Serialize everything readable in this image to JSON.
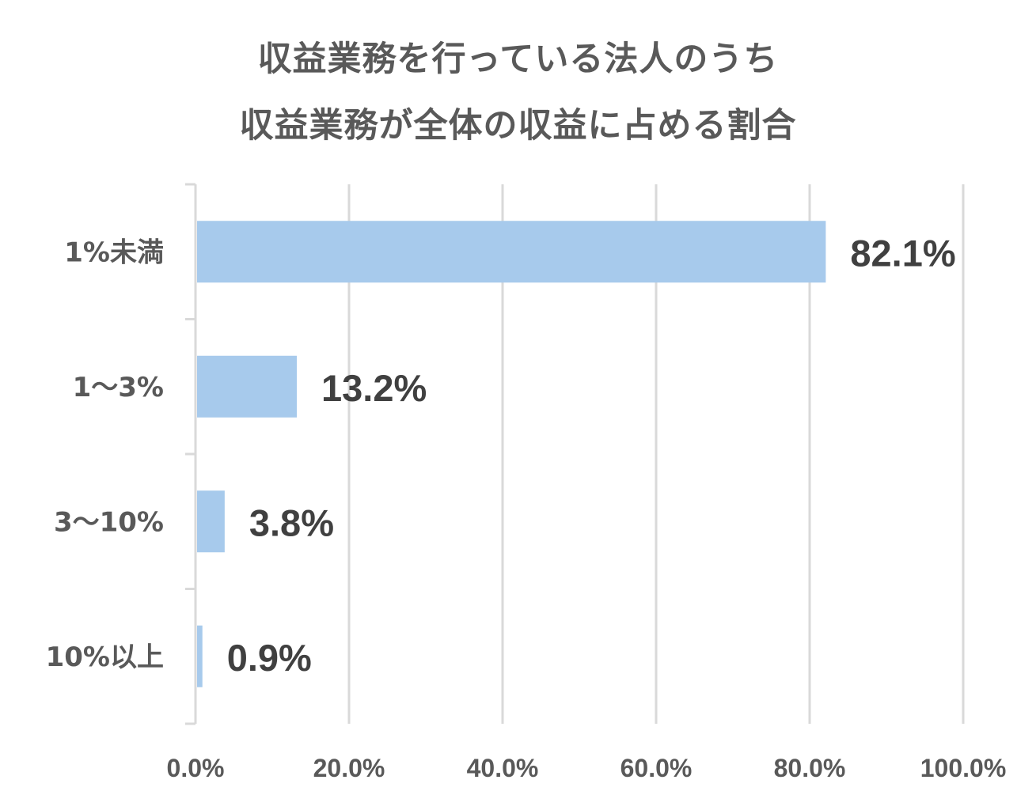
{
  "chart_data": {
    "type": "bar",
    "orientation": "horizontal",
    "title_lines": [
      "収益業務を行っている法人のうち",
      "収益業務が全体の収益に占める割合"
    ],
    "categories": [
      "1%未満",
      "1～3%",
      "3～10%",
      "10%以上"
    ],
    "values": [
      82.1,
      13.2,
      3.8,
      0.9
    ],
    "value_labels": [
      "82.1%",
      "13.2%",
      "3.8%",
      "0.9%"
    ],
    "x_ticks": [
      0,
      20,
      40,
      60,
      80,
      100
    ],
    "x_tick_labels": [
      "0.0%",
      "20.0%",
      "40.0%",
      "60.0%",
      "80.0%",
      "100.0%"
    ],
    "xlim": [
      0,
      100
    ],
    "xlabel": "",
    "ylabel": "",
    "grid": "vertical",
    "legend": "none",
    "colors": {
      "bar": "#a7caec",
      "grid": "#d9d9d9",
      "axis": "#d9d9d9",
      "text": "#595959",
      "value_label": "#404040"
    }
  }
}
